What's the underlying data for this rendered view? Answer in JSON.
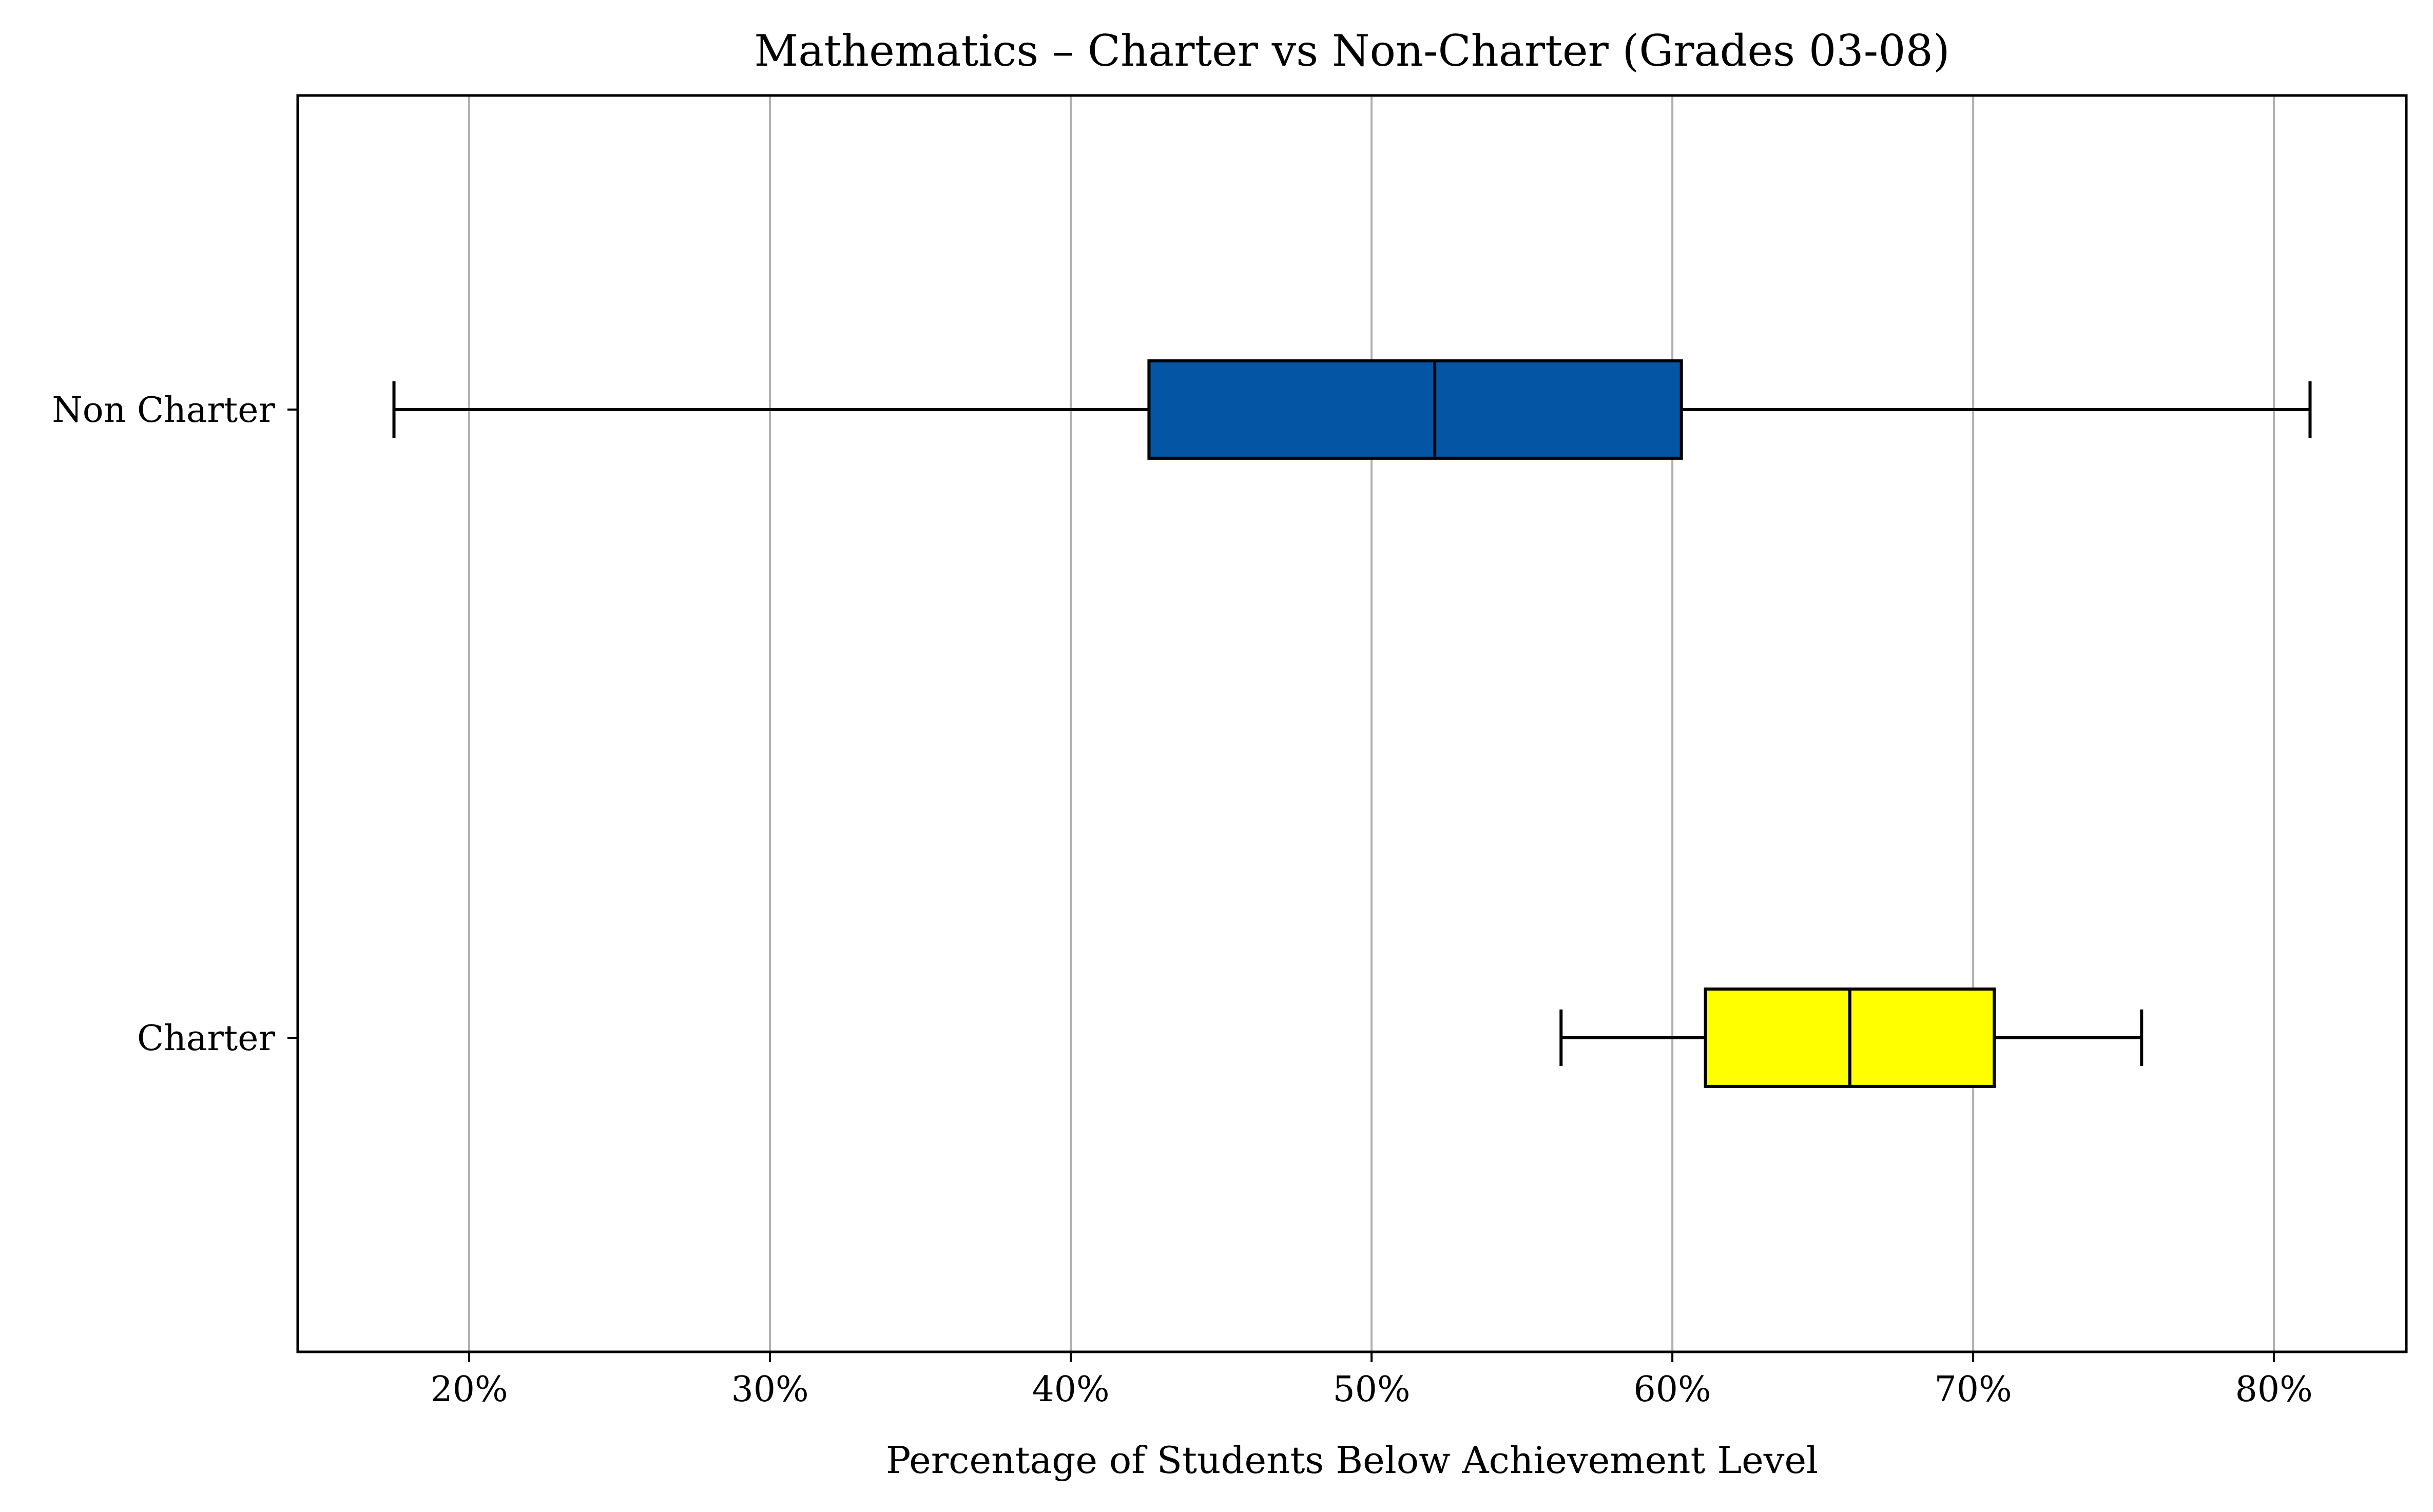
{
  "chart_data": {
    "type": "boxplot",
    "orientation": "horizontal",
    "title": "Mathematics – Charter vs Non-Charter (Grades 03-08)",
    "xlabel": "Percentage of Students Below Achievement Level",
    "ylabel": "",
    "xlim": [
      14.3,
      84.4
    ],
    "xticks": [
      20,
      30,
      40,
      50,
      60,
      70,
      80
    ],
    "xtick_labels": [
      "20%",
      "30%",
      "40%",
      "50%",
      "60%",
      "70%",
      "80%"
    ],
    "x_unit": "%",
    "grid": {
      "x": true,
      "y": false
    },
    "categories": [
      "Non Charter",
      "Charter"
    ],
    "series": [
      {
        "category": "Non Charter",
        "whisker_low": 17.5,
        "q1": 42.6,
        "median": 52.1,
        "q3": 60.3,
        "whisker_high": 81.2,
        "color": "#0456A5"
      },
      {
        "category": "Charter",
        "whisker_low": 56.3,
        "q1": 61.1,
        "median": 65.9,
        "q3": 70.7,
        "whisker_high": 75.6,
        "color": "#FFFF00"
      }
    ]
  }
}
